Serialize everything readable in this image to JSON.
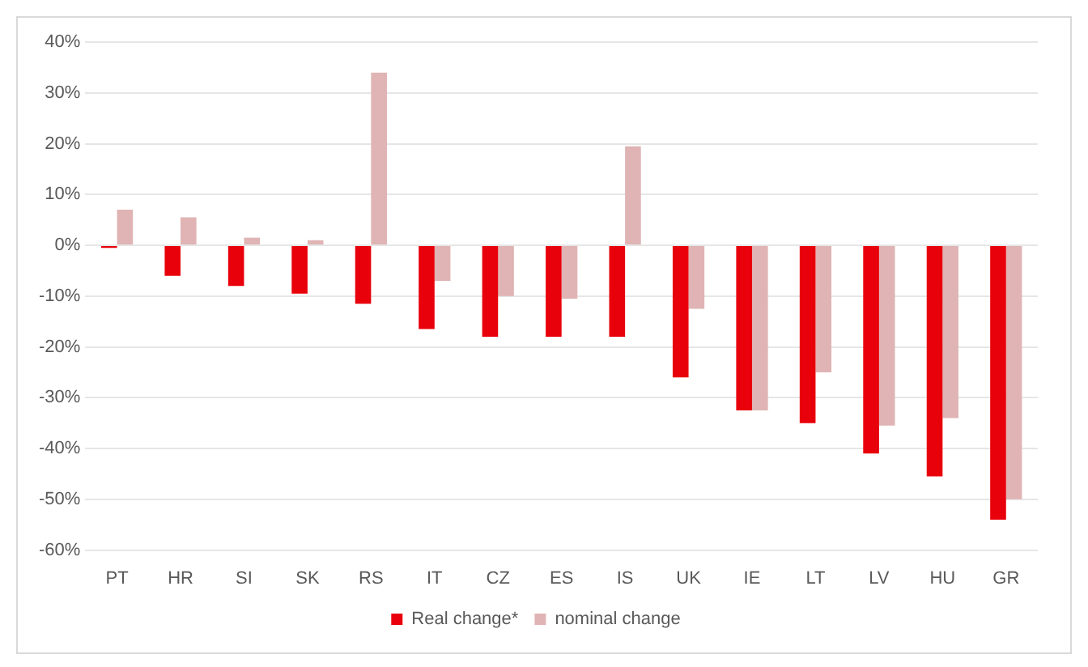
{
  "chart_data": {
    "type": "bar",
    "categories": [
      "PT",
      "HR",
      "SI",
      "SK",
      "RS",
      "IT",
      "CZ",
      "ES",
      "IS",
      "UK",
      "IE",
      "LT",
      "LV",
      "HU",
      "GR"
    ],
    "series": [
      {
        "name": "Real change*",
        "color": "#e8000b",
        "values": [
          -0.5,
          -6,
          -8,
          -9.5,
          -11.5,
          -16.5,
          -18,
          -18,
          -18,
          -26,
          -32.5,
          -35,
          -41,
          -45.5,
          -54
        ]
      },
      {
        "name": "nominal change",
        "color": "#e0b4b4",
        "values": [
          7,
          5.5,
          1.5,
          1,
          34,
          -7,
          -10,
          -10.5,
          19.5,
          -12.5,
          -32.5,
          -25,
          -35.5,
          -34,
          -50
        ]
      }
    ],
    "ylim": [
      -60,
      40
    ],
    "yticks": [
      {
        "value": -60,
        "label": "-60%"
      },
      {
        "value": -50,
        "label": "-50%"
      },
      {
        "value": -40,
        "label": "-40%"
      },
      {
        "value": -30,
        "label": "-30%"
      },
      {
        "value": -20,
        "label": "-20%"
      },
      {
        "value": -10,
        "label": "-10%"
      },
      {
        "value": 0,
        "label": "0%"
      },
      {
        "value": 10,
        "label": "10%"
      },
      {
        "value": 20,
        "label": "20%"
      },
      {
        "value": 30,
        "label": "30%"
      },
      {
        "value": 40,
        "label": "40%"
      }
    ],
    "grid": "y",
    "legend": "bottom"
  }
}
